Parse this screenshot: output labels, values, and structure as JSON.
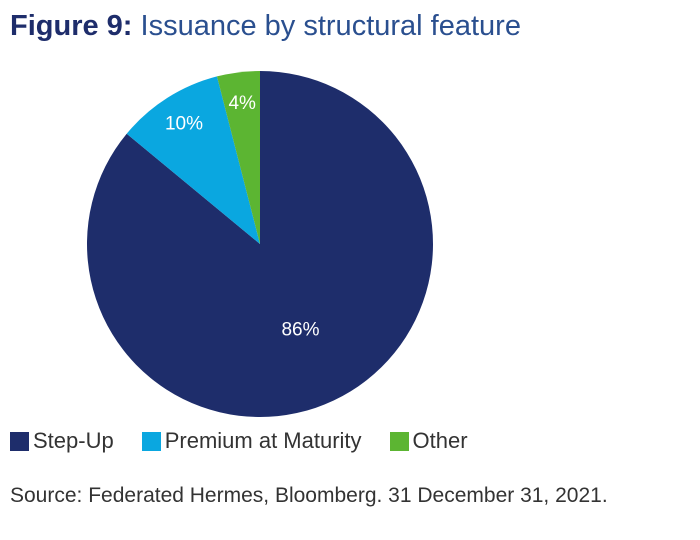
{
  "title": {
    "figure_label": "Figure 9:",
    "text": "Issuance by structural feature"
  },
  "source": "Source: Federated Hermes, Bloomberg. 31 December 31, 2021.",
  "colors": {
    "step_up": "#1e2d6b",
    "premium_at_maturity": "#0aa7e0",
    "other": "#5cb532",
    "label_text": "#ffffff"
  },
  "chart_data": {
    "type": "pie",
    "title": "Issuance by structural feature",
    "legend_position": "bottom-left",
    "slices": [
      {
        "name": "Step-Up",
        "value": 86,
        "label": "86%",
        "color": "#1e2d6b"
      },
      {
        "name": "Premium at Maturity",
        "value": 10,
        "label": "10%",
        "color": "#0aa7e0"
      },
      {
        "name": "Other",
        "value": 4,
        "label": "4%",
        "color": "#5cb532"
      }
    ]
  }
}
